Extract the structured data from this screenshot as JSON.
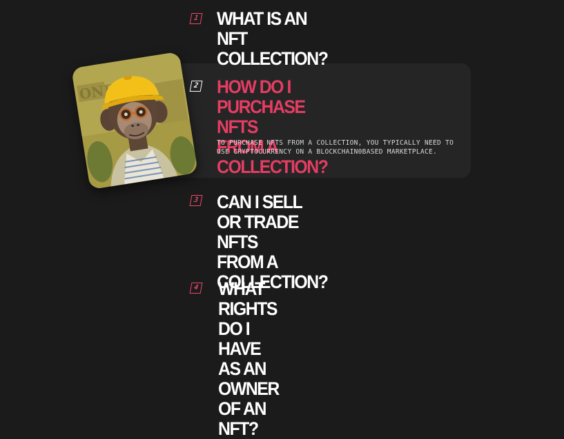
{
  "faq": {
    "items": [
      {
        "number": "1",
        "question": "WHAT IS AN NFT COLLECTION?"
      },
      {
        "number": "2",
        "question": "HOW DO I PURCHASE NFTS\nFROM A COLLECTION?",
        "answer": "TO PURCHASE NFTS FROM A COLLECTION, YOU TYPICALLY NEED TO USE CRYPTOCURRENCY ON A BLOCKCHAIN0BASED MARKETPLACE."
      },
      {
        "number": "3",
        "question": "CAN I SELL OR TRADE NFTS\nFROM A COLLECTION?"
      },
      {
        "number": "4",
        "question": "WHAT RIGHTS DO I HAVE AS AN\nOWNER OF AN NFT?"
      }
    ],
    "active_index": 1
  },
  "colors": {
    "background": "#1b1b1b",
    "card": "#252525",
    "accent": "#e63d63",
    "text": "#ffffff"
  },
  "icons": {
    "avatar": "ape-nft-avatar"
  }
}
